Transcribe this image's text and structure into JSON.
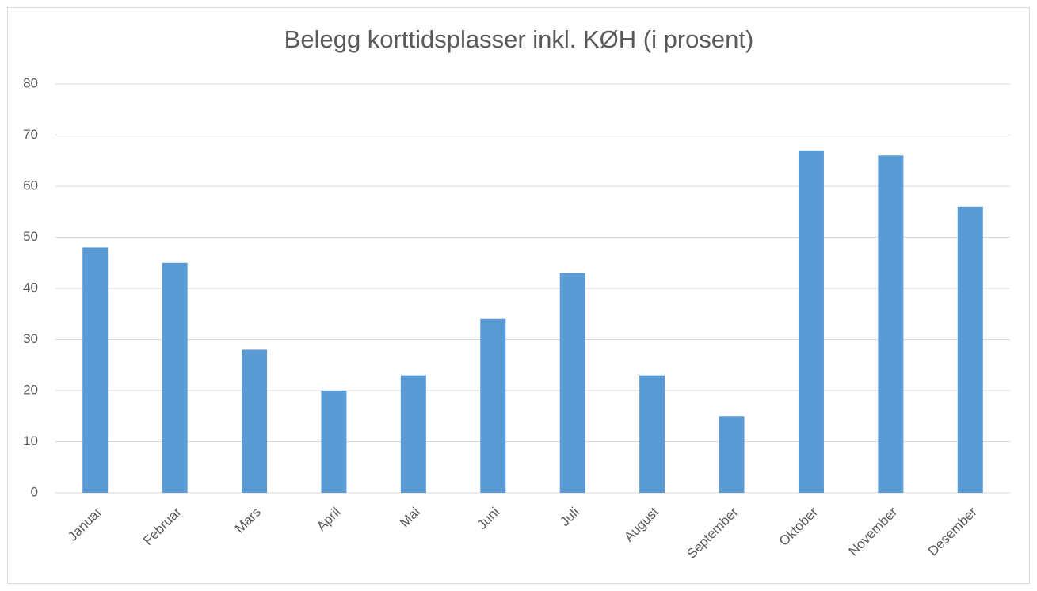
{
  "chart_data": {
    "type": "bar",
    "title": "Belegg korttidsplasser inkl. KØH (i prosent)",
    "categories": [
      "Januar",
      "Februar",
      "Mars",
      "April",
      "Mai",
      "Juni",
      "Juli",
      "August",
      "September",
      "Oktober",
      "November",
      "Desember"
    ],
    "values": [
      48,
      45,
      28,
      20,
      23,
      34,
      43,
      23,
      15,
      67,
      66,
      56
    ],
    "color": "#5b9bd5",
    "ylim": [
      0,
      80
    ],
    "yticks": [
      0,
      10,
      20,
      30,
      40,
      50,
      60,
      70,
      80
    ],
    "grid": true
  }
}
